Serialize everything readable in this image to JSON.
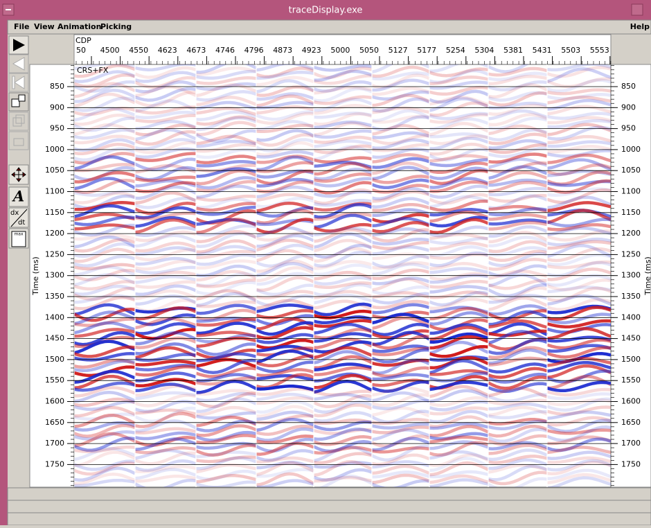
{
  "window": {
    "title": "traceDisplay.exe"
  },
  "menu": {
    "items": [
      "File",
      "View",
      "Animation",
      "Picking"
    ],
    "help": "Help"
  },
  "toolbar": {
    "font_icon": "A",
    "derivative_icon": [
      "dx",
      "dt"
    ],
    "max_icon": "max"
  },
  "plot": {
    "x_axis_title": "CDP",
    "x_tick_labels": [
      "50",
      "4500",
      "4550",
      "4623",
      "4673",
      "4746",
      "4796",
      "4873",
      "4923",
      "5000",
      "5050",
      "5127",
      "5177",
      "5254",
      "5304",
      "5381",
      "5431",
      "5503",
      "5553"
    ],
    "y_axis_title": "Time (ms)",
    "y_tick_labels": [
      850,
      900,
      950,
      1000,
      1050,
      1100,
      1150,
      1200,
      1250,
      1300,
      1350,
      1400,
      1450,
      1500,
      1550,
      1600,
      1650,
      1700,
      1750
    ],
    "annotation": "CRS+FX"
  }
}
